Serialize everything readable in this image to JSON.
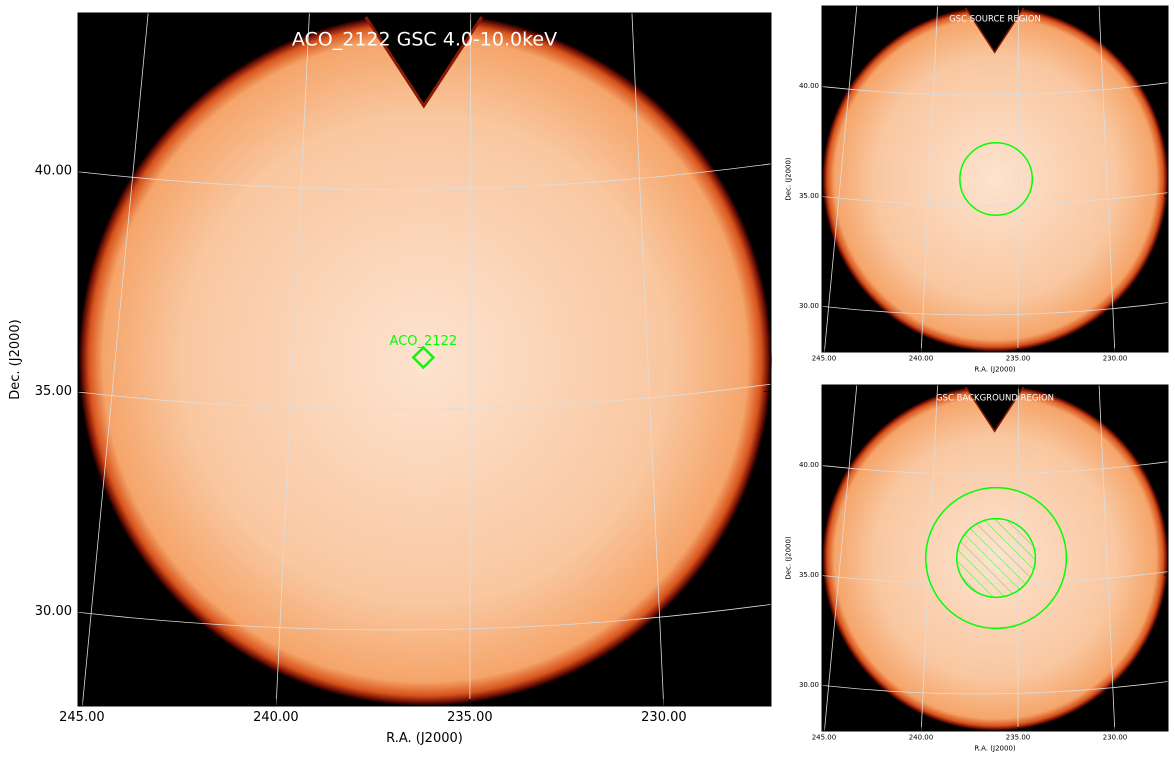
{
  "chart_data": [
    {
      "type": "image",
      "title": "ACO_2122 GSC 4.0-10.0keV",
      "xlabel": "R.A. (J2000)",
      "ylabel": "Dec. (J2000)",
      "xlim": [
        245.1,
        227.24
      ],
      "ylim": [
        27.86,
        43.59
      ],
      "xticks": [
        {
          "value": 245,
          "label": "245.00"
        },
        {
          "value": 240,
          "label": "240.00"
        },
        {
          "value": 235,
          "label": "235.00"
        },
        {
          "value": 230,
          "label": "230.00"
        }
      ],
      "yticks": [
        {
          "value": 30,
          "label": "30.00"
        },
        {
          "value": 35,
          "label": "35.00"
        },
        {
          "value": 40,
          "label": "40.00"
        }
      ],
      "grid": true,
      "markers": [
        {
          "label": "ACO_2122",
          "x": 236.2,
          "y": 35.77,
          "color": "#00ff00"
        }
      ]
    },
    {
      "type": "image",
      "title": "GSC SOURCE REGION",
      "xlabel": "R.A. (J2000)",
      "ylabel": "Dec. (J2000)",
      "xlim": [
        245.1,
        227.27
      ],
      "ylim": [
        27.9,
        43.64
      ],
      "xticks": [
        {
          "value": 245,
          "label": "245.00"
        },
        {
          "value": 240,
          "label": "240.00"
        },
        {
          "value": 235,
          "label": "235.00"
        },
        {
          "value": 230,
          "label": "230.00"
        }
      ],
      "yticks": [
        {
          "value": 30,
          "label": "30.00"
        },
        {
          "value": 35,
          "label": "35.00"
        },
        {
          "value": 40,
          "label": "40.00"
        }
      ],
      "grid": true,
      "regions": [
        {
          "x": 236.13,
          "y": 35.77,
          "r": 1.75,
          "color": "#00ff00",
          "hatch": false
        }
      ]
    },
    {
      "type": "image",
      "title": "GSC BACKGROUND REGION",
      "xlabel": "R.A. (J2000)",
      "ylabel": "Dec. (J2000)",
      "xlim": [
        245.1,
        227.27
      ],
      "ylim": [
        27.9,
        43.64
      ],
      "xticks": [
        {
          "value": 245,
          "label": "245.00"
        },
        {
          "value": 240,
          "label": "240.00"
        },
        {
          "value": 235,
          "label": "235.00"
        },
        {
          "value": 230,
          "label": "230.00"
        }
      ],
      "yticks": [
        {
          "value": 30,
          "label": "30.00"
        },
        {
          "value": 35,
          "label": "35.00"
        },
        {
          "value": 40,
          "label": "40.00"
        }
      ],
      "grid": true,
      "regions": [
        {
          "x": 236.13,
          "y": 35.77,
          "r": 3.4,
          "color": "#00ff00",
          "hatch": false
        },
        {
          "x": 236.13,
          "y": 35.77,
          "r": 1.9,
          "color": "#00ff00",
          "hatch": true
        }
      ]
    }
  ]
}
